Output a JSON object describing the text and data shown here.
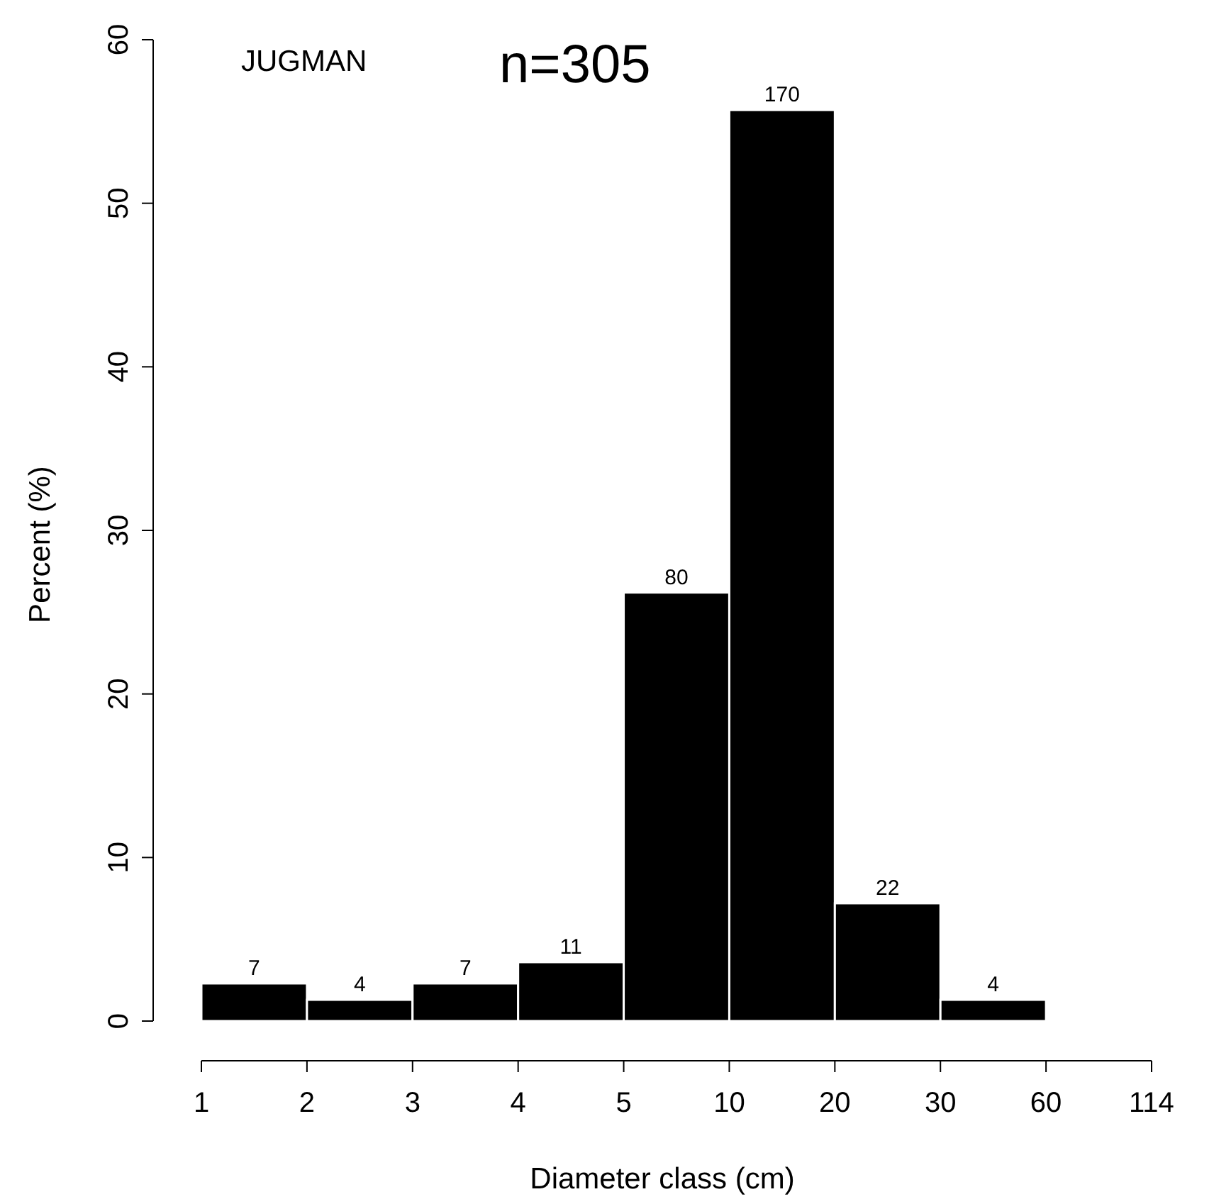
{
  "chart_data": {
    "type": "bar",
    "xlabel": "Diameter class (cm)",
    "ylabel": "Percent (%)",
    "annotations": [
      "JUGMAN",
      "n=305",
      "7",
      "4",
      "7",
      "11",
      "80",
      "170",
      "22",
      "4",
      "1",
      "2",
      "3",
      "4",
      "5",
      "10",
      "20",
      "30",
      "60",
      "114"
    ],
    "categories": [
      null,
      null,
      null,
      null,
      null,
      null,
      null,
      null
    ],
    "values": [
      2.3,
      1.3,
      2.3,
      3.6,
      26.2,
      55.7,
      7.2,
      1.3
    ],
    "color": "#000000",
    "ylim": [
      0,
      60
    ],
    "yticks": [
      0,
      10,
      20,
      30,
      40,
      50,
      60
    ]
  }
}
